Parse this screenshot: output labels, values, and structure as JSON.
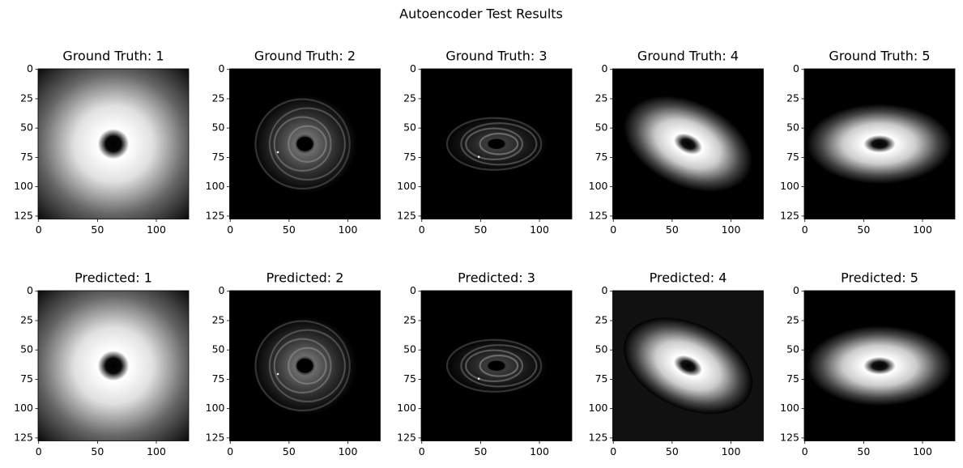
{
  "title": "Autoencoder Test Results",
  "chart_data": [
    {
      "type": "image",
      "title": "Ground Truth: 1",
      "xlim": [
        -0.5,
        127.5
      ],
      "ylim": [
        127.5,
        -0.5
      ],
      "xticks": [
        0,
        50,
        100
      ],
      "yticks": [
        0,
        25,
        50,
        75,
        100,
        125
      ]
    },
    {
      "type": "image",
      "title": "Ground Truth: 2",
      "xlim": [
        -0.5,
        127.5
      ],
      "ylim": [
        127.5,
        -0.5
      ],
      "xticks": [
        0,
        50,
        100
      ],
      "yticks": [
        0,
        25,
        50,
        75,
        100,
        125
      ]
    },
    {
      "type": "image",
      "title": "Ground Truth: 3",
      "xlim": [
        -0.5,
        127.5
      ],
      "ylim": [
        127.5,
        -0.5
      ],
      "xticks": [
        0,
        50,
        100
      ],
      "yticks": [
        0,
        25,
        50,
        75,
        100,
        125
      ]
    },
    {
      "type": "image",
      "title": "Ground Truth: 4",
      "xlim": [
        -0.5,
        127.5
      ],
      "ylim": [
        127.5,
        -0.5
      ],
      "xticks": [
        0,
        50,
        100
      ],
      "yticks": [
        0,
        25,
        50,
        75,
        100,
        125
      ]
    },
    {
      "type": "image",
      "title": "Ground Truth: 5",
      "xlim": [
        -0.5,
        127.5
      ],
      "ylim": [
        127.5,
        -0.5
      ],
      "xticks": [
        0,
        50,
        100
      ],
      "yticks": [
        0,
        25,
        50,
        75,
        100,
        125
      ]
    },
    {
      "type": "image",
      "title": "Predicted: 1",
      "xlim": [
        -0.5,
        127.5
      ],
      "ylim": [
        127.5,
        -0.5
      ],
      "xticks": [
        0,
        50,
        100
      ],
      "yticks": [
        0,
        25,
        50,
        75,
        100,
        125
      ]
    },
    {
      "type": "image",
      "title": "Predicted: 2",
      "xlim": [
        -0.5,
        127.5
      ],
      "ylim": [
        127.5,
        -0.5
      ],
      "xticks": [
        0,
        50,
        100
      ],
      "yticks": [
        0,
        25,
        50,
        75,
        100,
        125
      ]
    },
    {
      "type": "image",
      "title": "Predicted: 3",
      "xlim": [
        -0.5,
        127.5
      ],
      "ylim": [
        127.5,
        -0.5
      ],
      "xticks": [
        0,
        50,
        100
      ],
      "yticks": [
        0,
        25,
        50,
        75,
        100,
        125
      ]
    },
    {
      "type": "image",
      "title": "Predicted: 4",
      "xlim": [
        -0.5,
        127.5
      ],
      "ylim": [
        127.5,
        -0.5
      ],
      "xticks": [
        0,
        50,
        100
      ],
      "yticks": [
        0,
        25,
        50,
        75,
        100,
        125
      ]
    },
    {
      "type": "image",
      "title": "Predicted: 5",
      "xlim": [
        -0.5,
        127.5
      ],
      "ylim": [
        127.5,
        -0.5
      ],
      "xticks": [
        0,
        50,
        100
      ],
      "yticks": [
        0,
        25,
        50,
        75,
        100,
        125
      ]
    }
  ]
}
